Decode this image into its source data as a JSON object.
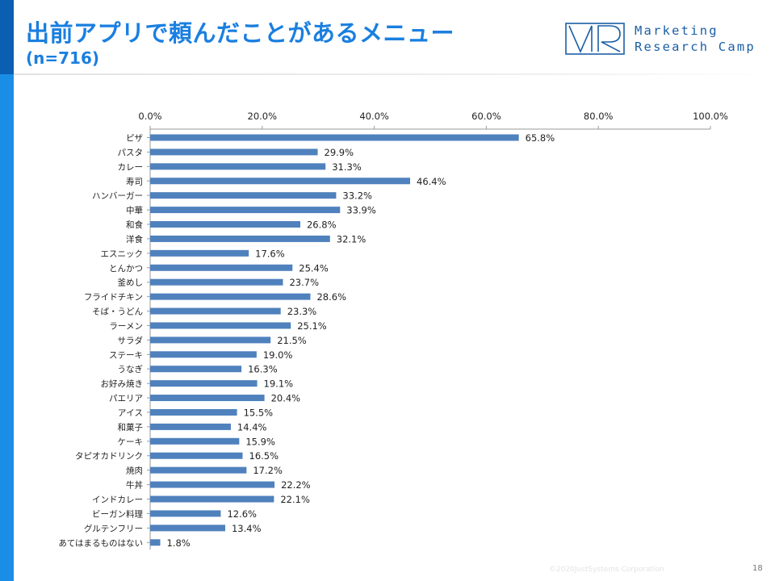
{
  "slide": {
    "title": "出前アプリで頼んだことがあるメニュー",
    "subtitle": "(n=716)",
    "copyright": "©2020JustSystems Corporation",
    "page_number": "18"
  },
  "logo": {
    "mark": "VR",
    "line1": "Marketing",
    "line2": "Research Camp",
    "color": "#1c5fa5"
  },
  "colors": {
    "accent": "#1a7fe0",
    "side_bar": "#1a8ee6",
    "bar": "#4f81bd"
  },
  "chart_data": {
    "type": "bar",
    "orientation": "horizontal",
    "categories": [
      "ピザ",
      "パスタ",
      "カレー",
      "寿司",
      "ハンバーガー",
      "中華",
      "和食",
      "洋食",
      "エスニック",
      "とんかつ",
      "釜めし",
      "フライドチキン",
      "そば・うどん",
      "ラーメン",
      "サラダ",
      "ステーキ",
      "うなぎ",
      "お好み焼き",
      "パエリア",
      "アイス",
      "和菓子",
      "ケーキ",
      "タピオカドリンク",
      "焼肉",
      "牛丼",
      "インドカレー",
      "ビーガン料理",
      "グルテンフリー",
      "あてはまるものはない"
    ],
    "values": [
      65.8,
      29.9,
      31.3,
      46.4,
      33.2,
      33.9,
      26.8,
      32.1,
      17.6,
      25.4,
      23.7,
      28.6,
      23.3,
      25.1,
      21.5,
      19.0,
      16.3,
      19.1,
      20.4,
      15.5,
      14.4,
      15.9,
      16.5,
      17.2,
      22.2,
      22.1,
      12.6,
      13.4,
      1.8
    ],
    "labels": [
      "65.8%",
      "29.9%",
      "31.3%",
      "46.4%",
      "33.2%",
      "33.9%",
      "26.8%",
      "32.1%",
      "17.6%",
      "25.4%",
      "23.7%",
      "28.6%",
      "23.3%",
      "25.1%",
      "21.5%",
      "19.0%",
      "16.3%",
      "19.1%",
      "20.4%",
      "15.5%",
      "14.4%",
      "15.9%",
      "16.5%",
      "17.2%",
      "22.2%",
      "22.1%",
      "12.6%",
      "13.4%",
      "1.8%"
    ],
    "x_ticks": [
      "0.0%",
      "20.0%",
      "40.0%",
      "60.0%",
      "80.0%",
      "100.0%"
    ],
    "xlim": [
      0,
      100
    ],
    "axis_position": "top",
    "grid": false,
    "legend": "none"
  }
}
